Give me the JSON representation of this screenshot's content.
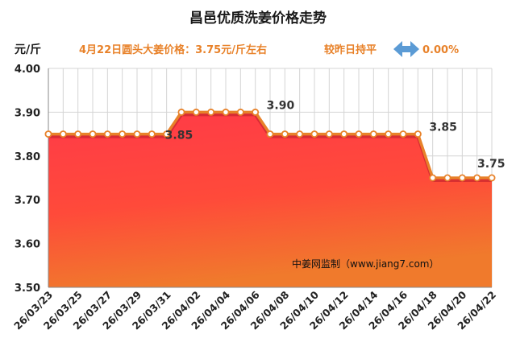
{
  "chart_data": {
    "type": "area",
    "title": "昌邑优质洗姜价格走势",
    "unit_label": "元/斤",
    "subtitle": "4月22日圆头大姜价格：3.75元/斤左右",
    "change_text": "较昨日持平",
    "change_value": "0.00%",
    "watermark": "中姜网监制（www.jiang7.com）",
    "ylim": [
      3.5,
      4.0
    ],
    "yticks": [
      "4.00",
      "3.90",
      "3.80",
      "3.70",
      "3.60",
      "3.50"
    ],
    "x_tick_labels": [
      "26/03/23",
      "26/03/25",
      "26/03/27",
      "26/03/29",
      "26/03/31",
      "26/04/02",
      "26/04/04",
      "26/04/06",
      "26/04/08",
      "26/04/10",
      "26/04/12",
      "26/04/14",
      "26/04/16",
      "26/04/18",
      "26/04/20",
      "26/04/22"
    ],
    "series": [
      {
        "values": [
          3.85,
          3.85,
          3.85,
          3.85,
          3.85,
          3.85,
          3.85,
          3.85,
          3.85,
          3.9,
          3.9,
          3.9,
          3.9,
          3.9,
          3.9,
          3.85,
          3.85,
          3.85,
          3.85,
          3.85,
          3.85,
          3.85,
          3.85,
          3.85,
          3.85,
          3.85,
          3.75,
          3.75,
          3.75,
          3.75,
          3.75
        ]
      }
    ],
    "data_labels": [
      {
        "index": 8,
        "text": "3.85"
      },
      {
        "index": 14,
        "text": "3.90"
      },
      {
        "index": 25,
        "text": "3.85"
      },
      {
        "index": 30,
        "text": "3.75"
      }
    ],
    "grid": true,
    "colors": {
      "line": "#e8822a",
      "area_top": "#ff3a3f",
      "area_bottom": "#f07a2c",
      "grid": "#d4d4d4",
      "arrow": "#5b9bd5"
    }
  }
}
